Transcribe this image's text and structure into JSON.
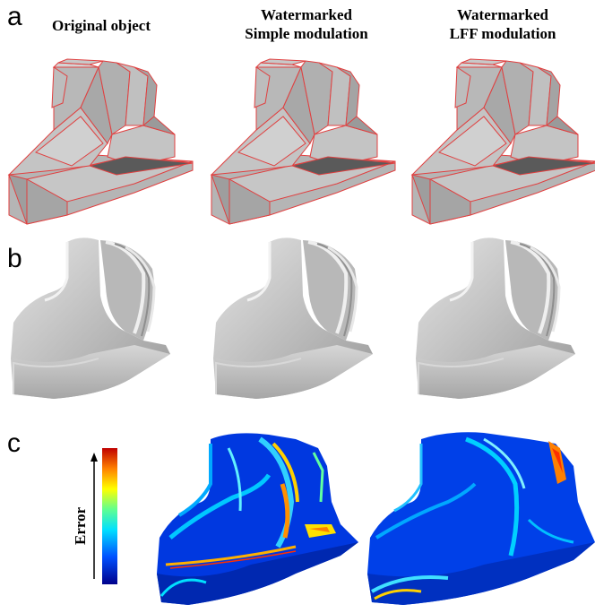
{
  "panels": {
    "a": "a",
    "b": "b",
    "c": "c"
  },
  "columns": {
    "original": {
      "line1": "Original object"
    },
    "simple": {
      "line1": "Watermarked",
      "line2": "Simple modulation"
    },
    "lff": {
      "line1": "Watermarked",
      "line2": "LFF modulation"
    }
  },
  "colorbar": {
    "label": "Error",
    "colors": [
      "#00008b",
      "#0050ff",
      "#00e0ff",
      "#60ff90",
      "#ffff00",
      "#ff8000",
      "#c00000"
    ]
  },
  "colors": {
    "mesh_fill": "#bdbdbd",
    "mesh_edge": "#e04040",
    "smooth_fill": "#c8c8c8"
  }
}
